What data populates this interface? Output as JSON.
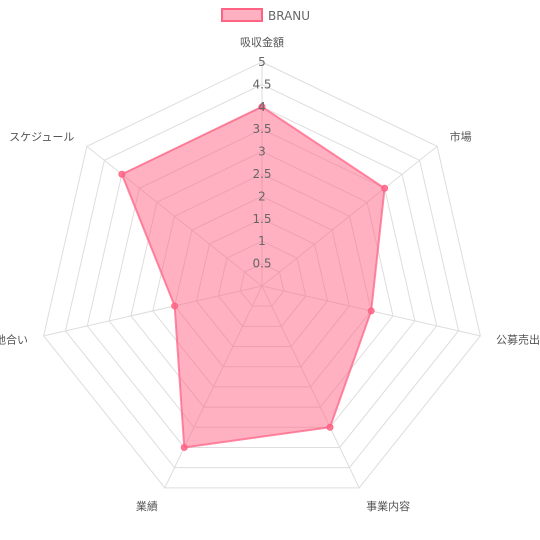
{
  "chart_data": {
    "type": "radar",
    "title": "",
    "axes": [
      "吸収金額",
      "市場",
      "公募売出比",
      "事業内容",
      "業績",
      "地合い",
      "スケジュール"
    ],
    "series": [
      {
        "name": "BRANU",
        "values": [
          4,
          3.5,
          2.5,
          3.5,
          4,
          2,
          4
        ],
        "fill_color": "#ff6384",
        "fill_opacity": 0.5,
        "line_color": "#ff6384"
      }
    ],
    "rmin": 0,
    "rmax": 5,
    "tick_step": 0.5,
    "ticks": [
      "0.5",
      "1",
      "1.5",
      "2",
      "2.5",
      "3",
      "3.5",
      "4",
      "4.5",
      "5"
    ],
    "grid": true,
    "legend_position": "top"
  }
}
